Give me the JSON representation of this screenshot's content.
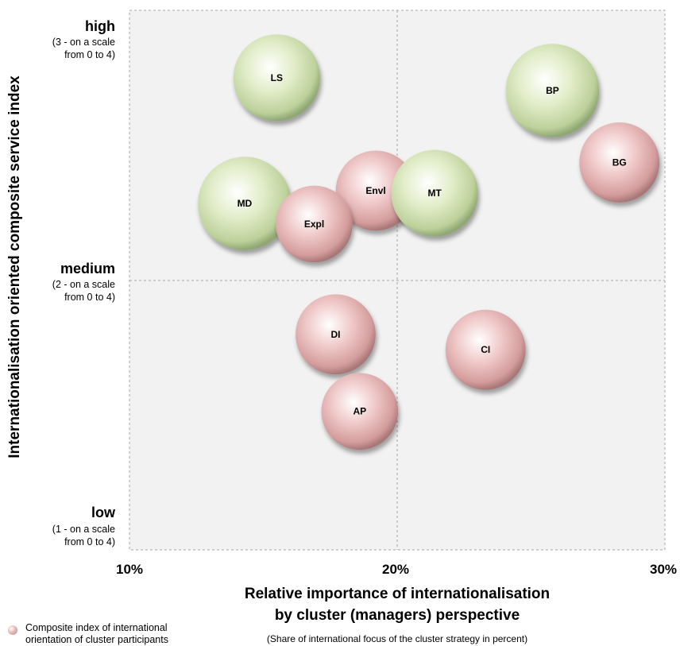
{
  "chart_data": {
    "type": "scatter",
    "xlabel": [
      "Relative importance of internationalisation",
      "by cluster (managers) perspective"
    ],
    "xnote": "(Share of international focus of the cluster strategy in percent)",
    "ylabel": "Internationalisation oriented composite service index",
    "xlim": [
      10,
      30
    ],
    "ylim": [
      1,
      3
    ],
    "xticks": [
      {
        "value": 10,
        "label": "10%"
      },
      {
        "value": 20,
        "label": "20%"
      },
      {
        "value": 30,
        "label": "30%"
      }
    ],
    "yticks": [
      {
        "value": 3,
        "label": "high",
        "sub": [
          "(3 - on a scale",
          "from 0 to 4)"
        ]
      },
      {
        "value": 2,
        "label": "medium",
        "sub": [
          "(2 - on a scale",
          "from 0 to 4)"
        ]
      },
      {
        "value": 1,
        "label": "low",
        "sub": [
          "(1 - on a scale",
          "from 0 to 4)"
        ]
      }
    ],
    "grid": true,
    "legend": {
      "position": "bottom-left",
      "text": [
        "Composite index of international",
        "orientation of cluster participants"
      ]
    },
    "colors": {
      "green": "#d4e6b5",
      "pink": "#e6b0b0",
      "plot_bg": "#f2f2f2",
      "grid": "#a6a6a6"
    },
    "points": [
      {
        "label": "LS",
        "x": 15.5,
        "y": 2.79,
        "size": 1.3,
        "color": "green"
      },
      {
        "label": "BP",
        "x": 25.8,
        "y": 2.74,
        "size": 1.4,
        "color": "green"
      },
      {
        "label": "BG",
        "x": 28.3,
        "y": 2.46,
        "size": 1.2,
        "color": "pink"
      },
      {
        "label": "MD",
        "x": 14.3,
        "y": 2.3,
        "size": 1.4,
        "color": "green"
      },
      {
        "label": "Envl",
        "x": 19.2,
        "y": 2.35,
        "size": 1.2,
        "color": "pink"
      },
      {
        "label": "MT",
        "x": 21.4,
        "y": 2.34,
        "size": 1.3,
        "color": "green"
      },
      {
        "label": "Expl",
        "x": 16.9,
        "y": 2.22,
        "size": 1.15,
        "color": "pink"
      },
      {
        "label": "DI",
        "x": 17.7,
        "y": 1.79,
        "size": 1.2,
        "color": "pink"
      },
      {
        "label": "CI",
        "x": 23.3,
        "y": 1.73,
        "size": 1.2,
        "color": "pink"
      },
      {
        "label": "AP",
        "x": 18.6,
        "y": 1.49,
        "size": 1.15,
        "color": "pink"
      }
    ]
  }
}
